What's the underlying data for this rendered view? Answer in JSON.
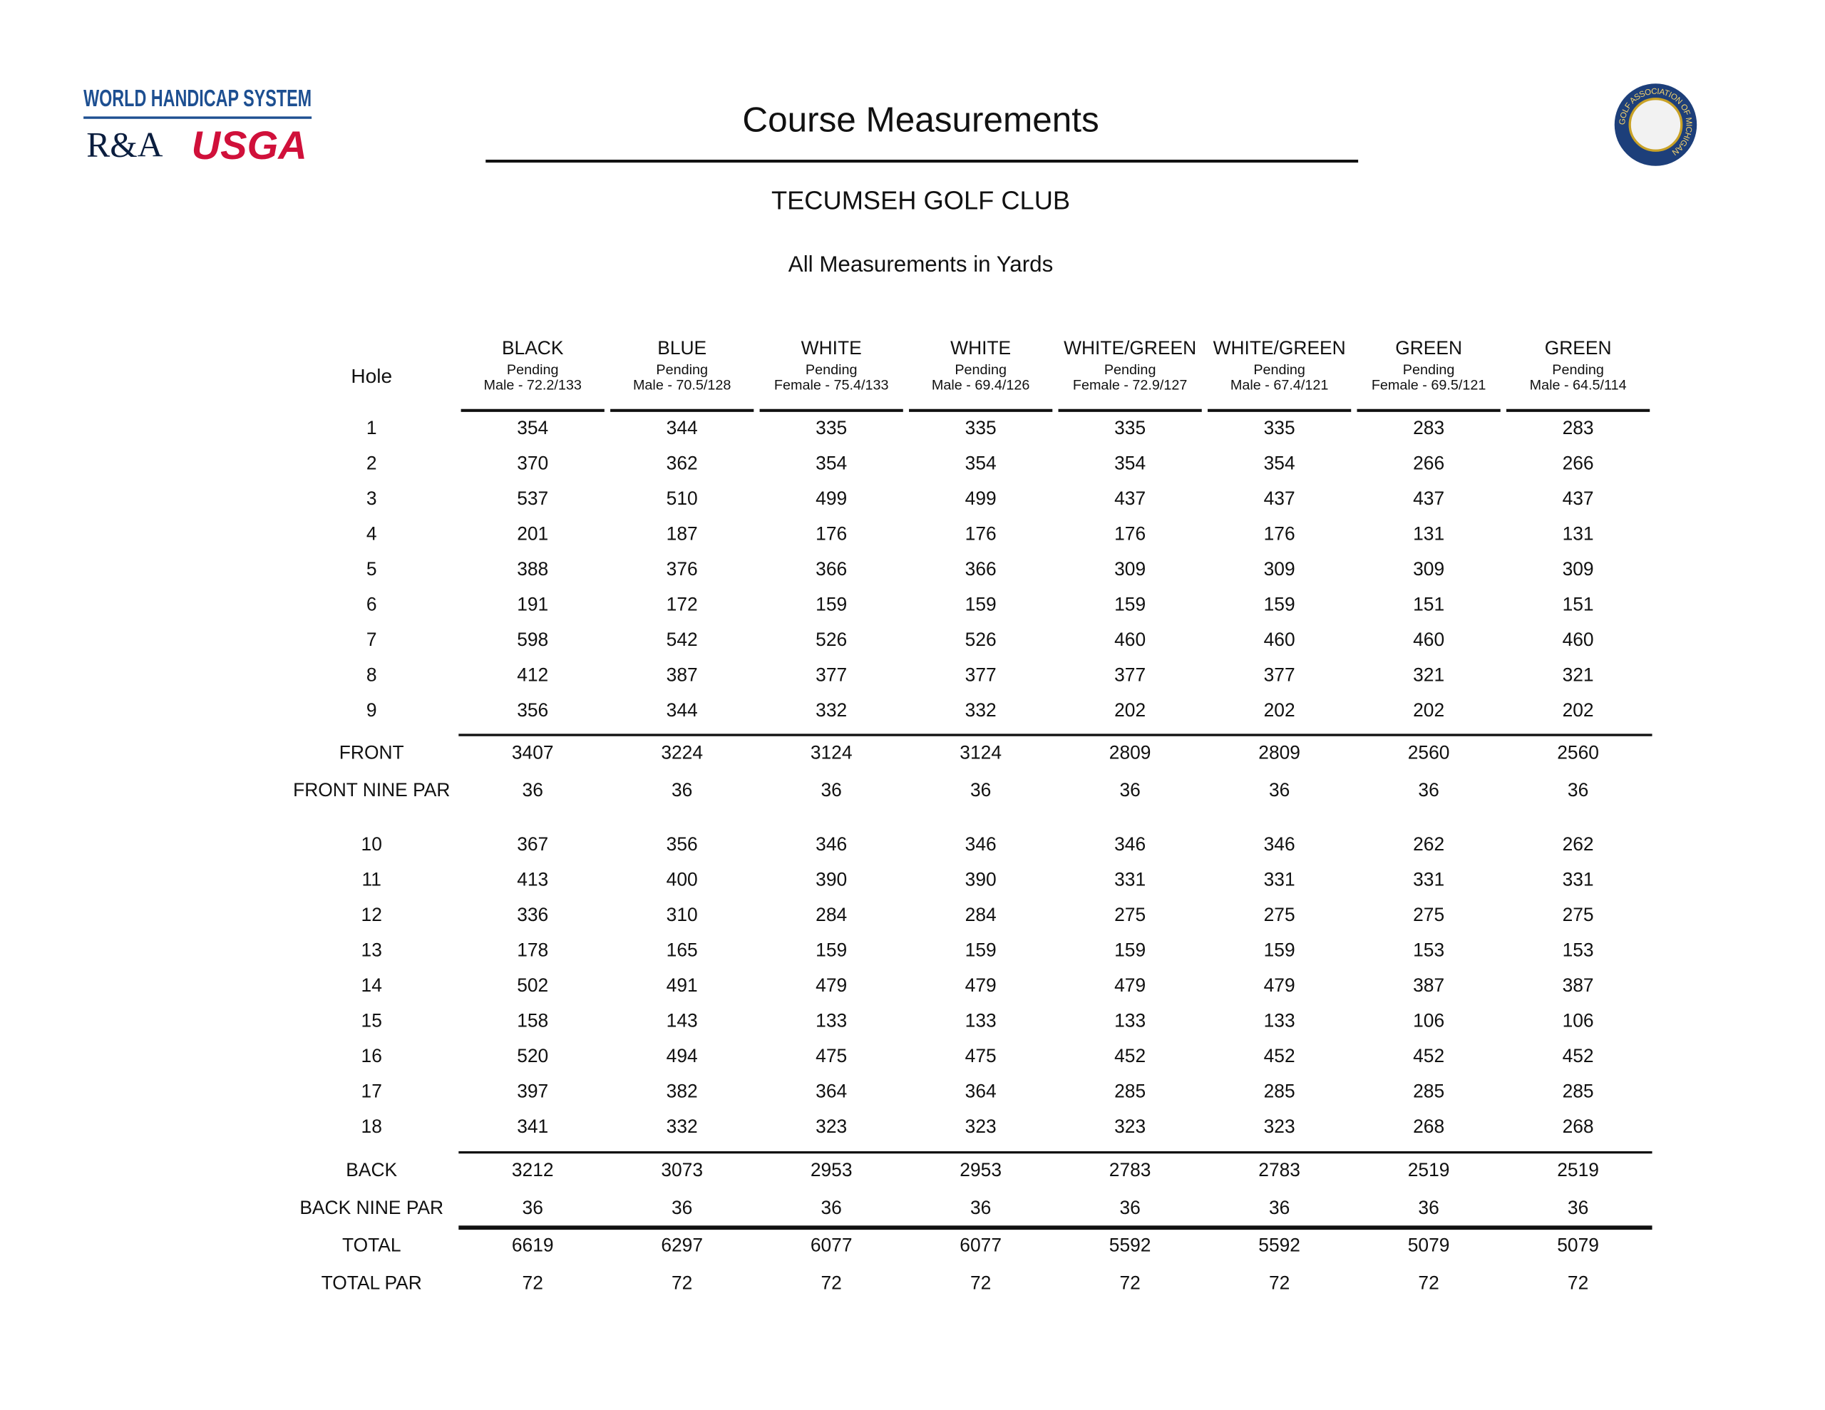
{
  "header": {
    "logo": {
      "system": "WORLD HANDICAP SYSTEM",
      "ra": "R&A",
      "usga": "USGA"
    },
    "seal": "GOLF ASSOCIATION OF MICHIGAN",
    "title": "Course Measurements",
    "club": "TECUMSEH GOLF CLUB",
    "subtitle": "All Measurements in Yards"
  },
  "table": {
    "hole_label": "Hole",
    "columns": [
      {
        "tee": "BLACK",
        "status": "Pending",
        "rating": "Male - 72.2/133"
      },
      {
        "tee": "BLUE",
        "status": "Pending",
        "rating": "Male - 70.5/128"
      },
      {
        "tee": "WHITE",
        "status": "Pending",
        "rating": "Female - 75.4/133"
      },
      {
        "tee": "WHITE",
        "status": "Pending",
        "rating": "Male - 69.4/126"
      },
      {
        "tee": "WHITE/GREEN",
        "status": "Pending",
        "rating": "Female - 72.9/127"
      },
      {
        "tee": "WHITE/GREEN",
        "status": "Pending",
        "rating": "Male - 67.4/121"
      },
      {
        "tee": "GREEN",
        "status": "Pending",
        "rating": "Female - 69.5/121"
      },
      {
        "tee": "GREEN",
        "status": "Pending",
        "rating": "Male - 64.5/114"
      }
    ],
    "rows": [
      {
        "label": "1",
        "values": [
          354,
          344,
          335,
          335,
          335,
          335,
          283,
          283
        ]
      },
      {
        "label": "2",
        "values": [
          370,
          362,
          354,
          354,
          354,
          354,
          266,
          266
        ]
      },
      {
        "label": "3",
        "values": [
          537,
          510,
          499,
          499,
          437,
          437,
          437,
          437
        ]
      },
      {
        "label": "4",
        "values": [
          201,
          187,
          176,
          176,
          176,
          176,
          131,
          131
        ]
      },
      {
        "label": "5",
        "values": [
          388,
          376,
          366,
          366,
          309,
          309,
          309,
          309
        ]
      },
      {
        "label": "6",
        "values": [
          191,
          172,
          159,
          159,
          159,
          159,
          151,
          151
        ]
      },
      {
        "label": "7",
        "values": [
          598,
          542,
          526,
          526,
          460,
          460,
          460,
          460
        ]
      },
      {
        "label": "8",
        "values": [
          412,
          387,
          377,
          377,
          377,
          377,
          321,
          321
        ]
      },
      {
        "label": "9",
        "values": [
          356,
          344,
          332,
          332,
          202,
          202,
          202,
          202
        ]
      },
      {
        "label": "FRONT",
        "values": [
          3407,
          3224,
          3124,
          3124,
          2809,
          2809,
          2560,
          2560
        ]
      },
      {
        "label": "FRONT NINE PAR",
        "values": [
          36,
          36,
          36,
          36,
          36,
          36,
          36,
          36
        ]
      },
      {
        "label": "10",
        "values": [
          367,
          356,
          346,
          346,
          346,
          346,
          262,
          262
        ]
      },
      {
        "label": "11",
        "values": [
          413,
          400,
          390,
          390,
          331,
          331,
          331,
          331
        ]
      },
      {
        "label": "12",
        "values": [
          336,
          310,
          284,
          284,
          275,
          275,
          275,
          275
        ]
      },
      {
        "label": "13",
        "values": [
          178,
          165,
          159,
          159,
          159,
          159,
          153,
          153
        ]
      },
      {
        "label": "14",
        "values": [
          502,
          491,
          479,
          479,
          479,
          479,
          387,
          387
        ]
      },
      {
        "label": "15",
        "values": [
          158,
          143,
          133,
          133,
          133,
          133,
          106,
          106
        ]
      },
      {
        "label": "16",
        "values": [
          520,
          494,
          475,
          475,
          452,
          452,
          452,
          452
        ]
      },
      {
        "label": "17",
        "values": [
          397,
          382,
          364,
          364,
          285,
          285,
          285,
          285
        ]
      },
      {
        "label": "18",
        "values": [
          341,
          332,
          323,
          323,
          323,
          323,
          268,
          268
        ]
      },
      {
        "label": "BACK",
        "values": [
          3212,
          3073,
          2953,
          2953,
          2783,
          2783,
          2519,
          2519
        ]
      },
      {
        "label": "BACK NINE PAR",
        "values": [
          36,
          36,
          36,
          36,
          36,
          36,
          36,
          36
        ]
      },
      {
        "label": "TOTAL",
        "values": [
          6619,
          6297,
          6077,
          6077,
          5592,
          5592,
          5079,
          5079
        ]
      },
      {
        "label": "TOTAL PAR",
        "values": [
          72,
          72,
          72,
          72,
          72,
          72,
          72,
          72
        ]
      }
    ]
  }
}
